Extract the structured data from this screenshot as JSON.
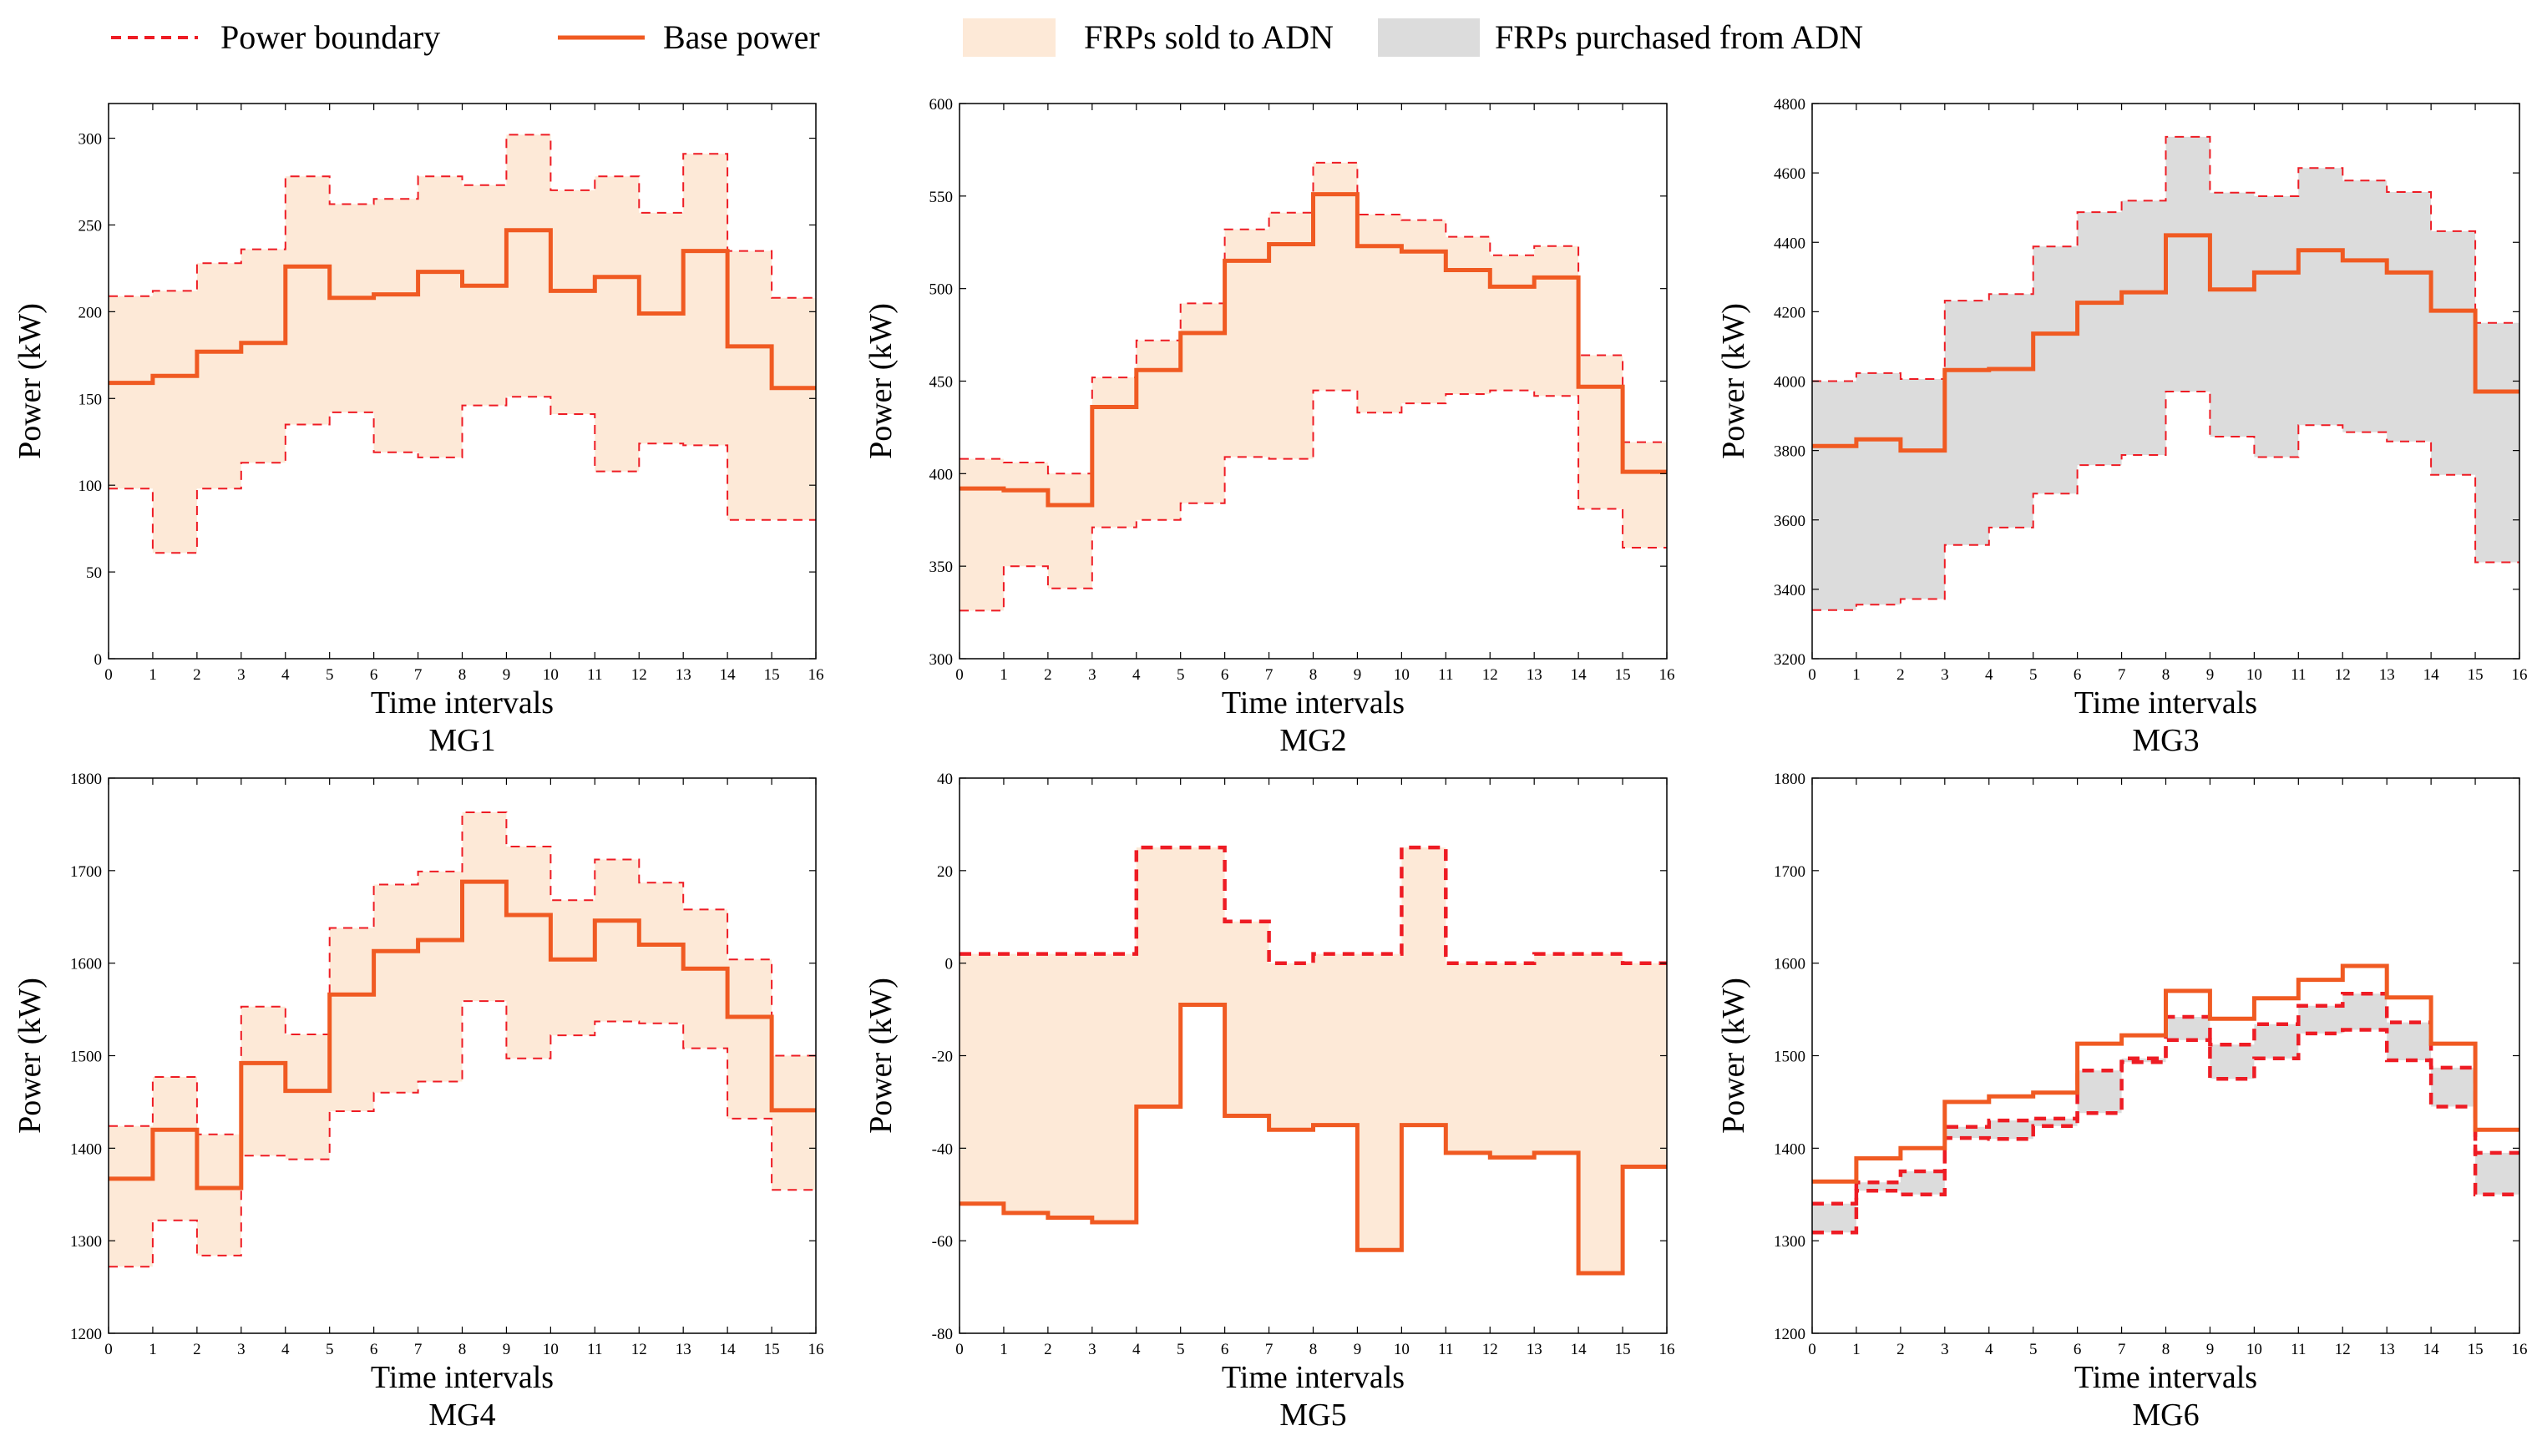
{
  "legend": {
    "boundary": "Power boundary",
    "base": "Base power",
    "sold": "FRPs sold to ADN",
    "purchased": "FRPs purchased from ADN"
  },
  "colors": {
    "base": "#f05a22",
    "boundary": "#ee1c24",
    "sold_fill": "#fde9d7",
    "purchased_fill": "#dcdcdc"
  },
  "chart_data": [
    {
      "type": "line",
      "step": "post",
      "title": "MG1",
      "xlabel": "Time intervals",
      "ylabel": "Power (kW)",
      "xlim": [
        0,
        16
      ],
      "ylim": [
        0,
        320
      ],
      "xticks": [
        0,
        1,
        2,
        3,
        4,
        5,
        6,
        7,
        8,
        9,
        10,
        11,
        12,
        13,
        14,
        15,
        16
      ],
      "yticks": [
        0,
        50,
        100,
        150,
        200,
        250,
        300
      ],
      "fill": "sold",
      "series": [
        {
          "name": "Base power",
          "values": [
            159,
            163,
            177,
            182,
            226,
            208,
            210,
            223,
            215,
            247,
            212,
            220,
            199,
            235,
            180,
            156
          ]
        },
        {
          "name": "Power boundary",
          "values": [
            209,
            212,
            228,
            236,
            278,
            262,
            265,
            278,
            273,
            302,
            270,
            278,
            257,
            291,
            235,
            208
          ]
        },
        {
          "name": "Power boundary",
          "values": [
            98,
            61,
            98,
            113,
            135,
            142,
            119,
            116,
            146,
            151,
            141,
            108,
            124,
            123,
            80,
            80
          ]
        }
      ]
    },
    {
      "type": "line",
      "step": "post",
      "title": "MG2",
      "xlabel": "Time intervals",
      "ylabel": "Power (kW)",
      "xlim": [
        0,
        16
      ],
      "ylim": [
        300,
        600
      ],
      "xticks": [
        0,
        1,
        2,
        3,
        4,
        5,
        6,
        7,
        8,
        9,
        10,
        11,
        12,
        13,
        14,
        15,
        16
      ],
      "yticks": [
        300,
        350,
        400,
        450,
        500,
        550,
        600
      ],
      "fill": "sold",
      "series": [
        {
          "name": "Base power",
          "values": [
            392,
            391,
            383,
            436,
            456,
            476,
            515,
            524,
            551,
            523,
            520,
            510,
            501,
            506,
            447,
            401
          ]
        },
        {
          "name": "Power boundary",
          "values": [
            408,
            406,
            400,
            452,
            472,
            492,
            532,
            541,
            568,
            540,
            537,
            528,
            518,
            523,
            464,
            417
          ]
        },
        {
          "name": "Power boundary",
          "values": [
            326,
            350,
            338,
            371,
            375,
            384,
            409,
            408,
            445,
            433,
            438,
            443,
            445,
            442,
            381,
            360
          ]
        }
      ]
    },
    {
      "type": "line",
      "step": "post",
      "title": "MG3",
      "xlabel": "Time intervals",
      "ylabel": "Power (kW)",
      "xlim": [
        0,
        16
      ],
      "ylim": [
        3200,
        4800
      ],
      "xticks": [
        0,
        1,
        2,
        3,
        4,
        5,
        6,
        7,
        8,
        9,
        10,
        11,
        12,
        13,
        14,
        15,
        16
      ],
      "yticks": [
        3200,
        3400,
        3600,
        3800,
        4000,
        4200,
        4400,
        4600,
        4800
      ],
      "fill": "purchased",
      "series": [
        {
          "name": "Base power",
          "values": [
            3813,
            3832,
            3800,
            4032,
            4035,
            4137,
            4226,
            4256,
            4420,
            4264,
            4313,
            4377,
            4348,
            4313,
            4203,
            3970
          ]
        },
        {
          "name": "Power boundary",
          "values": [
            4000,
            4023,
            4006,
            4232,
            4251,
            4388,
            4487,
            4520,
            4704,
            4543,
            4533,
            4614,
            4578,
            4545,
            4432,
            4168
          ]
        },
        {
          "name": "Power boundary",
          "values": [
            3340,
            3356,
            3372,
            3528,
            3578,
            3676,
            3758,
            3787,
            3970,
            3840,
            3781,
            3873,
            3853,
            3826,
            3730,
            3478
          ]
        }
      ]
    },
    {
      "type": "line",
      "step": "post",
      "title": "MG4",
      "xlabel": "Time intervals",
      "ylabel": "Power (kW)",
      "xlim": [
        0,
        16
      ],
      "ylim": [
        1200,
        1800
      ],
      "xticks": [
        0,
        1,
        2,
        3,
        4,
        5,
        6,
        7,
        8,
        9,
        10,
        11,
        12,
        13,
        14,
        15,
        16
      ],
      "yticks": [
        1200,
        1300,
        1400,
        1500,
        1600,
        1700,
        1800
      ],
      "fill": "sold",
      "series": [
        {
          "name": "Base power",
          "values": [
            1367,
            1420,
            1357,
            1492,
            1462,
            1566,
            1613,
            1625,
            1688,
            1652,
            1604,
            1646,
            1620,
            1594,
            1542,
            1441
          ]
        },
        {
          "name": "Power boundary",
          "values": [
            1424,
            1477,
            1415,
            1553,
            1523,
            1638,
            1685,
            1699,
            1763,
            1726,
            1668,
            1712,
            1687,
            1658,
            1604,
            1500
          ]
        },
        {
          "name": "Power boundary",
          "values": [
            1272,
            1322,
            1284,
            1392,
            1388,
            1440,
            1460,
            1472,
            1559,
            1497,
            1522,
            1537,
            1535,
            1508,
            1432,
            1355
          ]
        }
      ]
    },
    {
      "type": "line",
      "step": "post",
      "title": "MG5",
      "xlabel": "Time intervals",
      "ylabel": "Power (kW)",
      "xlim": [
        0,
        16
      ],
      "ylim": [
        -80,
        40
      ],
      "xticks": [
        0,
        1,
        2,
        3,
        4,
        5,
        6,
        7,
        8,
        9,
        10,
        11,
        12,
        13,
        14,
        15,
        16
      ],
      "yticks": [
        -80,
        -60,
        -40,
        -20,
        0,
        20,
        40
      ],
      "fill": "sold",
      "series": [
        {
          "name": "Base power",
          "values": [
            -52,
            -54,
            -55,
            -56,
            -31,
            -9,
            -33,
            -36,
            -35,
            -62,
            -35,
            -41,
            -42,
            -41,
            -67,
            -44
          ]
        },
        {
          "name": "Power boundary",
          "values": [
            2,
            2,
            2,
            2,
            25,
            25,
            9,
            0,
            2,
            2,
            25,
            0,
            0,
            2,
            2,
            0
          ]
        }
      ]
    },
    {
      "type": "line",
      "step": "post",
      "title": "MG6",
      "xlabel": "Time intervals",
      "ylabel": "Power (kW)",
      "xlim": [
        0,
        16
      ],
      "ylim": [
        1200,
        1800
      ],
      "xticks": [
        0,
        1,
        2,
        3,
        4,
        5,
        6,
        7,
        8,
        9,
        10,
        11,
        12,
        13,
        14,
        15,
        16
      ],
      "yticks": [
        1200,
        1300,
        1400,
        1500,
        1600,
        1700,
        1800
      ],
      "fill": "purchased",
      "series": [
        {
          "name": "Base power",
          "values": [
            1364,
            1389,
            1400,
            1450,
            1456,
            1460,
            1513,
            1522,
            1570,
            1540,
            1562,
            1582,
            1597,
            1563,
            1513,
            1420
          ]
        },
        {
          "name": "Power boundary",
          "values": [
            1340,
            1363,
            1375,
            1423,
            1430,
            1432,
            1484,
            1497,
            1517,
            1512,
            1534,
            1554,
            1567,
            1536,
            1487,
            1395
          ]
        },
        {
          "name": "Power boundary",
          "values": [
            1309,
            1354,
            1350,
            1411,
            1410,
            1424,
            1438,
            1493,
            1542,
            1475,
            1497,
            1524,
            1528,
            1495,
            1445,
            1350
          ]
        }
      ]
    }
  ]
}
